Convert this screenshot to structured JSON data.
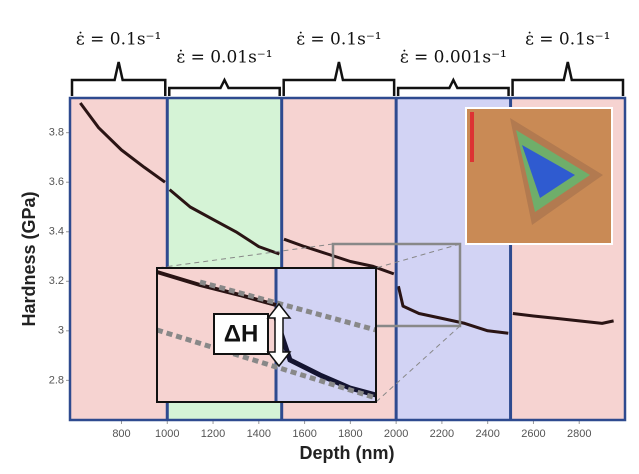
{
  "chart_data": {
    "type": "line",
    "xlabel": "Depth (nm)",
    "ylabel": "Hardness (GPa)",
    "xlim": [
      575,
      3000
    ],
    "ylim": [
      2.64,
      3.94
    ],
    "xticks": [
      800,
      1000,
      1200,
      1400,
      1600,
      1800,
      2000,
      2200,
      2400,
      2600,
      2800
    ],
    "yticks": [
      2.8,
      3,
      3.2,
      3.4,
      3.6,
      3.8
    ],
    "boundaries": [
      1000,
      1500,
      2000,
      2500
    ],
    "strain_rates": [
      "ε̇ = 0.1s⁻¹",
      "ε̇ = 0.01s⁻¹",
      "ε̇ = 0.1s⁻¹",
      "ε̇ = 0.001s⁻¹",
      "ε̇ = 0.1s⁻¹"
    ],
    "region_colors": [
      "#f6d3d1",
      "#d5f3d6",
      "#f6d3d1",
      "#d2d3f4",
      "#f6d3d1"
    ],
    "x": [
      620,
      700,
      800,
      900,
      990,
      1000,
      1010,
      1100,
      1200,
      1300,
      1400,
      1490,
      1500,
      1510,
      1600,
      1700,
      1800,
      1900,
      1990,
      2000,
      2010,
      2030,
      2100,
      2200,
      2300,
      2400,
      2490,
      2500,
      2510,
      2600,
      2700,
      2800,
      2900,
      2950
    ],
    "values": [
      3.92,
      3.82,
      3.73,
      3.66,
      3.6,
      null,
      3.57,
      3.5,
      3.45,
      3.4,
      3.34,
      3.31,
      null,
      3.37,
      3.34,
      3.31,
      3.28,
      3.26,
      3.23,
      null,
      3.18,
      3.1,
      3.07,
      3.05,
      3.03,
      3.0,
      2.99,
      null,
      3.07,
      3.06,
      3.05,
      3.04,
      3.03,
      3.04
    ],
    "color": "#2a1414",
    "annotation": "ΔH"
  }
}
